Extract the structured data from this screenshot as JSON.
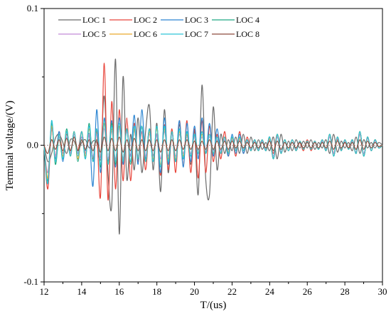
{
  "chart_data": {
    "type": "line",
    "title": "",
    "xlabel": "T/(us)",
    "ylabel": "Terminal voltage/(V)",
    "xlim": [
      12,
      30
    ],
    "ylim": [
      -0.1,
      0.1
    ],
    "x_ticks": [
      "12",
      "14",
      "16",
      "18",
      "20",
      "22",
      "24",
      "26",
      "28",
      "30"
    ],
    "y_ticks": [
      "-0.1",
      "0.0",
      "0.1"
    ],
    "grid": false,
    "legend_position": "top-left",
    "x": [
      12.0,
      12.2,
      12.4,
      12.6,
      12.8,
      13.0,
      13.2,
      13.4,
      13.6,
      13.8,
      14.0,
      14.2,
      14.4,
      14.6,
      14.8,
      15.0,
      15.2,
      15.4,
      15.6,
      15.8,
      16.0,
      16.2,
      16.4,
      16.6,
      16.8,
      17.0,
      17.2,
      17.4,
      17.6,
      17.8,
      18.0,
      18.2,
      18.4,
      18.6,
      18.8,
      19.0,
      19.2,
      19.4,
      19.6,
      19.8,
      20.0,
      20.2,
      20.4,
      20.6,
      20.8,
      21.0,
      21.2,
      21.4,
      21.6,
      21.8,
      22.0,
      22.2,
      22.4,
      22.6,
      22.8,
      23.0,
      23.2,
      23.4,
      23.6,
      23.8,
      24.0,
      24.2,
      24.4,
      24.6,
      24.8,
      25.0,
      25.2,
      25.4,
      25.6,
      25.8,
      26.0,
      26.2,
      26.4,
      26.6,
      26.8,
      27.0,
      27.2,
      27.4,
      27.6,
      27.8,
      28.0,
      28.2,
      28.4,
      28.6,
      28.8,
      29.0,
      29.2,
      29.4,
      29.6,
      29.8,
      30.0
    ],
    "series": [
      {
        "name": "LOC 1",
        "color": "#6b6b6b",
        "values": [
          0.0,
          -0.012,
          -0.006,
          0.005,
          0.008,
          0.002,
          -0.006,
          0.004,
          0.003,
          -0.004,
          0.002,
          0.004,
          -0.002,
          0.003,
          0.002,
          -0.01,
          0.036,
          -0.02,
          -0.044,
          0.063,
          -0.065,
          0.05,
          -0.025,
          0.008,
          -0.018,
          0.02,
          -0.02,
          0.01,
          0.029,
          -0.018,
          0.016,
          -0.034,
          0.026,
          -0.02,
          0.01,
          -0.012,
          0.015,
          -0.01,
          0.008,
          -0.014,
          0.01,
          -0.036,
          0.044,
          -0.025,
          -0.036,
          0.028,
          -0.018,
          0.008,
          -0.006,
          0.004,
          -0.004,
          0.006,
          -0.006,
          0.008,
          -0.006,
          0.006,
          -0.004,
          0.004,
          -0.003,
          0.002,
          -0.004,
          0.006,
          -0.01,
          0.008,
          -0.005,
          0.003,
          -0.004,
          0.004,
          -0.002,
          0.003,
          -0.002,
          0.004,
          -0.003,
          0.002,
          -0.002,
          0.004,
          -0.006,
          0.008,
          -0.005,
          0.003,
          -0.002,
          0.002,
          -0.004,
          0.006,
          -0.006,
          0.004,
          -0.002,
          0.002,
          -0.002,
          0.002,
          0.0
        ]
      },
      {
        "name": "LOC 2",
        "color": "#e8443a",
        "values": [
          0.0,
          -0.032,
          0.012,
          -0.008,
          0.01,
          -0.006,
          0.008,
          -0.004,
          0.006,
          -0.004,
          0.01,
          -0.006,
          0.008,
          -0.01,
          0.01,
          -0.038,
          0.06,
          -0.04,
          0.032,
          -0.032,
          0.026,
          -0.026,
          0.02,
          -0.026,
          0.016,
          -0.012,
          0.01,
          -0.018,
          0.012,
          -0.008,
          0.008,
          -0.022,
          0.015,
          -0.018,
          0.012,
          -0.02,
          0.018,
          -0.015,
          0.018,
          -0.02,
          0.012,
          -0.024,
          0.018,
          -0.02,
          0.014,
          -0.012,
          0.008,
          -0.01,
          0.01,
          -0.008,
          0.006,
          -0.008,
          0.01,
          -0.006,
          0.006,
          -0.004,
          0.004,
          -0.004,
          0.004,
          -0.004,
          0.004,
          -0.006,
          0.008,
          -0.006,
          0.004,
          -0.004,
          0.004,
          -0.004,
          0.002,
          -0.004,
          0.004,
          -0.004,
          0.003,
          -0.003,
          0.004,
          -0.004,
          0.008,
          -0.006,
          0.004,
          -0.003,
          0.002,
          -0.002,
          0.004,
          -0.006,
          0.008,
          -0.008,
          0.006,
          -0.004,
          0.004,
          -0.002,
          0.0
        ]
      },
      {
        "name": "LOC 3",
        "color": "#2a84d2",
        "values": [
          0.0,
          -0.028,
          0.016,
          -0.01,
          0.01,
          -0.012,
          0.01,
          -0.006,
          0.008,
          -0.006,
          0.006,
          -0.004,
          0.008,
          -0.03,
          0.026,
          -0.02,
          0.02,
          -0.012,
          0.018,
          -0.016,
          0.02,
          -0.014,
          0.012,
          -0.008,
          0.022,
          -0.014,
          0.026,
          -0.01,
          0.012,
          -0.008,
          0.008,
          -0.02,
          0.02,
          -0.014,
          0.01,
          -0.012,
          0.018,
          -0.016,
          0.016,
          -0.012,
          0.014,
          -0.01,
          0.02,
          -0.006,
          0.016,
          -0.008,
          0.012,
          -0.006,
          0.006,
          -0.008,
          0.008,
          -0.006,
          0.008,
          -0.006,
          0.004,
          -0.004,
          0.004,
          -0.003,
          0.003,
          -0.004,
          0.006,
          -0.01,
          0.008,
          -0.005,
          0.004,
          -0.004,
          0.004,
          -0.004,
          0.003,
          -0.003,
          0.003,
          -0.003,
          0.003,
          -0.003,
          0.004,
          -0.004,
          0.008,
          -0.008,
          0.006,
          -0.004,
          0.004,
          -0.003,
          0.004,
          -0.006,
          0.01,
          -0.008,
          0.006,
          -0.004,
          0.004,
          -0.002,
          0.0
        ]
      },
      {
        "name": "LOC 4",
        "color": "#1fa882",
        "values": [
          0.0,
          -0.026,
          0.016,
          -0.014,
          0.006,
          -0.01,
          0.012,
          -0.008,
          0.01,
          -0.012,
          0.01,
          -0.01,
          0.016,
          -0.012,
          0.012,
          -0.016,
          0.016,
          -0.012,
          0.016,
          -0.014,
          0.014,
          -0.01,
          0.012,
          -0.014,
          0.012,
          -0.01,
          0.014,
          -0.012,
          0.012,
          -0.012,
          0.014,
          -0.016,
          0.014,
          -0.012,
          0.01,
          -0.012,
          0.012,
          -0.01,
          0.01,
          -0.008,
          0.008,
          -0.006,
          0.01,
          -0.006,
          0.008,
          -0.006,
          0.006,
          -0.006,
          0.006,
          -0.006,
          0.006,
          -0.004,
          0.006,
          -0.004,
          0.004,
          -0.004,
          0.004,
          -0.004,
          0.004,
          -0.004,
          0.006,
          -0.01,
          0.008,
          -0.006,
          0.004,
          -0.004,
          0.004,
          -0.004,
          0.003,
          -0.003,
          0.003,
          -0.003,
          0.003,
          -0.003,
          0.004,
          -0.004,
          0.008,
          -0.008,
          0.006,
          -0.004,
          0.004,
          -0.003,
          0.004,
          -0.006,
          0.01,
          -0.008,
          0.006,
          -0.004,
          0.004,
          -0.002,
          0.0
        ]
      },
      {
        "name": "LOC 5",
        "color": "#c28ad6",
        "values": [
          0.0,
          -0.02,
          0.012,
          -0.008,
          0.006,
          -0.006,
          0.006,
          -0.006,
          0.008,
          -0.006,
          0.006,
          -0.006,
          0.008,
          -0.008,
          0.008,
          -0.01,
          0.012,
          -0.01,
          0.01,
          -0.01,
          0.012,
          -0.01,
          0.01,
          -0.008,
          0.01,
          -0.008,
          0.01,
          -0.008,
          0.008,
          -0.008,
          0.008,
          -0.01,
          0.01,
          -0.008,
          0.008,
          -0.008,
          0.008,
          -0.006,
          0.006,
          -0.006,
          0.006,
          -0.004,
          0.006,
          -0.004,
          0.006,
          -0.004,
          0.004,
          -0.004,
          0.004,
          -0.004,
          0.004,
          -0.003,
          0.004,
          -0.003,
          0.003,
          -0.003,
          0.003,
          -0.003,
          0.003,
          -0.003,
          0.004,
          -0.008,
          0.006,
          -0.005,
          0.004,
          -0.004,
          0.004,
          -0.003,
          0.003,
          -0.003,
          0.003,
          -0.003,
          0.003,
          -0.003,
          0.003,
          -0.003,
          0.006,
          -0.006,
          0.005,
          -0.004,
          0.003,
          -0.003,
          0.003,
          -0.005,
          0.008,
          -0.006,
          0.005,
          -0.004,
          0.003,
          -0.002,
          0.0
        ]
      },
      {
        "name": "LOC 6",
        "color": "#e9a92c",
        "values": [
          0.0,
          -0.024,
          0.014,
          -0.012,
          0.008,
          -0.008,
          0.01,
          -0.008,
          0.01,
          -0.01,
          0.01,
          -0.008,
          0.012,
          -0.012,
          0.012,
          -0.014,
          0.016,
          -0.014,
          0.012,
          -0.012,
          0.014,
          -0.012,
          0.012,
          -0.012,
          0.012,
          -0.01,
          0.014,
          -0.012,
          0.01,
          -0.01,
          0.012,
          -0.014,
          0.012,
          -0.01,
          0.01,
          -0.01,
          0.01,
          -0.008,
          0.008,
          -0.008,
          0.008,
          -0.006,
          0.008,
          -0.006,
          0.008,
          -0.006,
          0.006,
          -0.006,
          0.006,
          -0.005,
          0.005,
          -0.004,
          0.005,
          -0.004,
          0.004,
          -0.004,
          0.004,
          -0.004,
          0.004,
          -0.004,
          0.005,
          -0.01,
          0.008,
          -0.006,
          0.004,
          -0.004,
          0.004,
          -0.004,
          0.003,
          -0.003,
          0.003,
          -0.003,
          0.003,
          -0.003,
          0.004,
          -0.004,
          0.008,
          -0.008,
          0.006,
          -0.004,
          0.004,
          -0.003,
          0.004,
          -0.006,
          0.01,
          -0.008,
          0.006,
          -0.004,
          0.004,
          -0.002,
          0.0
        ]
      },
      {
        "name": "LOC 7",
        "color": "#2ec4d6",
        "values": [
          0.0,
          -0.028,
          0.018,
          -0.012,
          0.008,
          -0.01,
          0.01,
          -0.008,
          0.01,
          -0.008,
          0.01,
          -0.01,
          0.014,
          -0.012,
          0.012,
          -0.014,
          0.018,
          -0.014,
          0.014,
          -0.012,
          0.016,
          -0.012,
          0.012,
          -0.012,
          0.014,
          -0.01,
          0.014,
          -0.012,
          0.012,
          -0.012,
          0.014,
          -0.016,
          0.014,
          -0.012,
          0.01,
          -0.012,
          0.012,
          -0.01,
          0.01,
          -0.008,
          0.008,
          -0.006,
          0.01,
          -0.006,
          0.008,
          -0.006,
          0.006,
          -0.006,
          0.006,
          -0.006,
          0.006,
          -0.004,
          0.006,
          -0.004,
          0.004,
          -0.004,
          0.004,
          -0.004,
          0.004,
          -0.004,
          0.006,
          -0.01,
          0.008,
          -0.006,
          0.004,
          -0.004,
          0.004,
          -0.004,
          0.003,
          -0.003,
          0.003,
          -0.003,
          0.003,
          -0.003,
          0.004,
          -0.004,
          0.008,
          -0.008,
          0.006,
          -0.004,
          0.004,
          -0.003,
          0.004,
          -0.006,
          0.01,
          -0.008,
          0.006,
          -0.004,
          0.004,
          -0.002,
          0.0
        ]
      },
      {
        "name": "LOC 8",
        "color": "#8c4a3c",
        "values": [
          0.0,
          -0.006,
          0.004,
          -0.003,
          0.004,
          -0.004,
          0.005,
          -0.004,
          0.006,
          -0.004,
          0.004,
          -0.003,
          0.004,
          -0.004,
          0.004,
          -0.005,
          0.006,
          -0.004,
          0.005,
          -0.004,
          0.006,
          -0.005,
          0.004,
          -0.004,
          0.005,
          -0.004,
          0.004,
          -0.004,
          0.004,
          -0.004,
          0.004,
          -0.005,
          0.004,
          -0.004,
          0.004,
          -0.004,
          0.004,
          -0.003,
          0.004,
          -0.003,
          0.003,
          -0.003,
          0.003,
          -0.003,
          0.004,
          -0.003,
          0.003,
          -0.003,
          0.003,
          -0.003,
          0.003,
          -0.002,
          0.003,
          -0.002,
          0.002,
          -0.002,
          0.002,
          -0.002,
          0.002,
          -0.002,
          0.003,
          -0.004,
          0.003,
          -0.003,
          0.002,
          -0.002,
          0.002,
          -0.002,
          0.002,
          -0.002,
          0.002,
          -0.002,
          0.002,
          -0.002,
          0.002,
          -0.002,
          0.003,
          -0.003,
          0.003,
          -0.002,
          0.002,
          -0.002,
          0.002,
          -0.003,
          0.004,
          -0.003,
          0.003,
          -0.002,
          0.002,
          -0.001,
          0.0
        ]
      }
    ]
  }
}
